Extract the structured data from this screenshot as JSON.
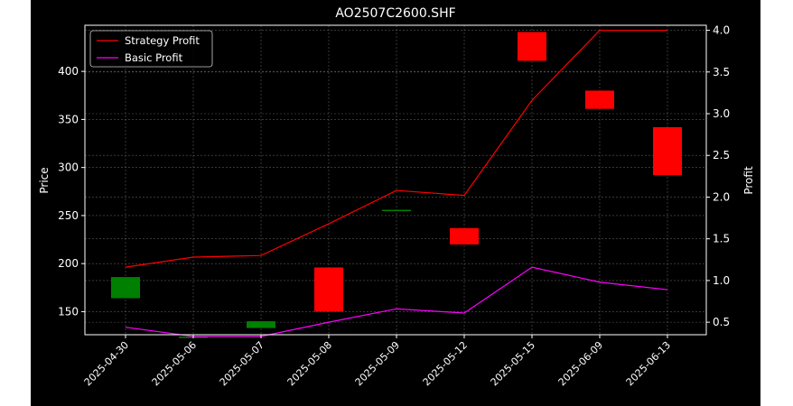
{
  "chart_data": {
    "type": "candlestick+line",
    "title": "AO2507C2600.SHF",
    "ylabel": "Price",
    "y2label": "Profit",
    "categories": [
      "2025-04-30",
      "2025-05-06",
      "2025-05-07",
      "2025-05-08",
      "2025-05-09",
      "2025-05-12",
      "2025-05-15",
      "2025-06-09",
      "2025-06-13"
    ],
    "ylim": [
      126,
      448
    ],
    "yticks": [
      150,
      200,
      250,
      300,
      350,
      400
    ],
    "y2lim": [
      0.35,
      4.06
    ],
    "y2ticks": [
      0.5,
      1.0,
      1.5,
      2.0,
      2.5,
      3.0,
      3.5,
      4.0
    ],
    "grid": true,
    "legend_position": "top-left",
    "candles": [
      {
        "date": "2025-04-30",
        "open": 164,
        "close": 186,
        "color": "#008000"
      },
      {
        "date": "2025-05-06",
        "open": 124,
        "close": 124,
        "color": "#008000"
      },
      {
        "date": "2025-05-07",
        "open": 133,
        "close": 140,
        "color": "#008000"
      },
      {
        "date": "2025-05-08",
        "open": 196,
        "close": 150,
        "color": "#ff0000"
      },
      {
        "date": "2025-05-09",
        "open": 256,
        "close": 256,
        "color": "#008000"
      },
      {
        "date": "2025-05-12",
        "open": 237,
        "close": 220,
        "color": "#ff0000"
      },
      {
        "date": "2025-05-15",
        "open": 441,
        "close": 411,
        "color": "#ff0000"
      },
      {
        "date": "2025-06-09",
        "open": 380,
        "close": 361,
        "color": "#ff0000"
      },
      {
        "date": "2025-06-13",
        "open": 342,
        "close": 292,
        "color": "#ff0000"
      }
    ],
    "series": [
      {
        "name": "Strategy Profit",
        "color": "#ff0000",
        "axis": "right",
        "values": [
          1.16,
          1.28,
          1.3,
          1.68,
          2.08,
          2.02,
          3.16,
          4.0,
          4.0
        ]
      },
      {
        "name": "Basic Profit",
        "color": "#ff00ff",
        "axis": "right",
        "values": [
          0.44,
          0.33,
          0.33,
          0.5,
          0.66,
          0.61,
          1.16,
          0.98,
          0.89
        ]
      }
    ]
  }
}
